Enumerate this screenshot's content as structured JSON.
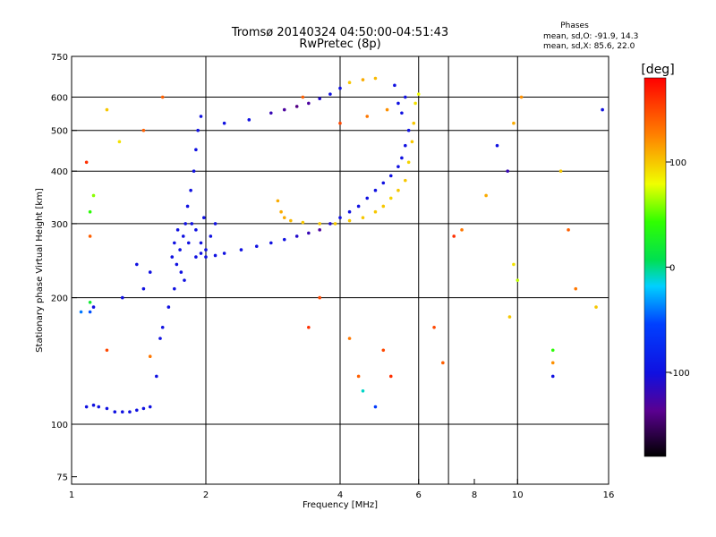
{
  "chart_data": {
    "type": "scatter",
    "title": "Tromsø 20140324 04:50:00-04:51:43",
    "subtitle": "RwPretec (8p)",
    "xlabel": "Frequency [MHz]",
    "ylabel": "Stationary phase Virtual Height [km]",
    "x_scale": "log",
    "y_scale": "log",
    "xlim": [
      1,
      16
    ],
    "ylim": [
      72,
      750
    ],
    "x_ticks": [
      1,
      2,
      4,
      6,
      8,
      10,
      16
    ],
    "x_tick_labels": [
      "1",
      "2",
      "4",
      "6",
      "8",
      "10",
      "16"
    ],
    "x_gridlines": [
      2,
      4,
      6,
      7,
      10
    ],
    "y_ticks": [
      75,
      100,
      200,
      300,
      400,
      500,
      600,
      750
    ],
    "y_tick_labels": [
      "75",
      "100",
      "200",
      "300",
      "400",
      "500",
      "600",
      "750"
    ],
    "y_gridlines": [
      100,
      200,
      300,
      400,
      500,
      600
    ],
    "legend": {
      "title": "Phases",
      "lines": [
        "mean, sd,O: -91.9, 14.3",
        "mean, sd,X:  85.6, 22.0"
      ]
    },
    "colorbar": {
      "label": "[deg]",
      "range": [
        -180,
        180
      ],
      "ticks": [
        -100,
        0,
        100
      ],
      "tick_labels": [
        "-100",
        "0",
        "100"
      ],
      "colormap": "rainbow"
    },
    "series": [
      {
        "points": [
          [
            1.08,
            110,
            -100
          ],
          [
            1.12,
            111,
            -100
          ],
          [
            1.15,
            110,
            -100
          ],
          [
            1.2,
            109,
            -100
          ],
          [
            1.25,
            107,
            -100
          ],
          [
            1.3,
            107,
            -100
          ],
          [
            1.35,
            107,
            -100
          ],
          [
            1.4,
            108,
            -100
          ],
          [
            1.45,
            109,
            -100
          ],
          [
            1.5,
            110,
            -100
          ],
          [
            1.55,
            130,
            -100
          ],
          [
            1.58,
            160,
            -100
          ],
          [
            1.6,
            170,
            -100
          ],
          [
            1.65,
            190,
            -100
          ],
          [
            1.7,
            210,
            -100
          ],
          [
            1.72,
            240,
            -100
          ],
          [
            1.75,
            260,
            -100
          ],
          [
            1.78,
            280,
            -100
          ],
          [
            1.8,
            300,
            -100
          ],
          [
            1.82,
            330,
            -100
          ],
          [
            1.85,
            360,
            -100
          ],
          [
            1.88,
            400,
            -100
          ],
          [
            1.9,
            450,
            -100
          ],
          [
            1.92,
            500,
            -100
          ],
          [
            1.95,
            540,
            -100
          ],
          [
            1.68,
            250,
            -100
          ],
          [
            1.7,
            270,
            -100
          ],
          [
            1.73,
            290,
            -100
          ],
          [
            1.76,
            230,
            -100
          ],
          [
            1.79,
            220,
            -100
          ],
          [
            1.83,
            270,
            -100
          ],
          [
            1.86,
            300,
            -100
          ],
          [
            1.9,
            290,
            -100
          ],
          [
            1.95,
            270,
            -100
          ],
          [
            2.0,
            260,
            -100
          ],
          [
            2.05,
            280,
            -100
          ],
          [
            2.1,
            300,
            -100
          ],
          [
            1.9,
            250,
            -100
          ],
          [
            1.95,
            255,
            -100
          ],
          [
            1.98,
            310,
            -100
          ],
          [
            2.0,
            250,
            -100
          ],
          [
            2.1,
            252,
            -100
          ],
          [
            2.2,
            255,
            -100
          ],
          [
            2.4,
            260,
            -100
          ],
          [
            2.6,
            265,
            -100
          ],
          [
            2.8,
            270,
            -100
          ],
          [
            3.0,
            275,
            -100
          ],
          [
            3.2,
            280,
            -110
          ],
          [
            3.4,
            285,
            -120
          ],
          [
            3.6,
            290,
            -130
          ],
          [
            3.8,
            300,
            -110
          ],
          [
            4.0,
            310,
            -100
          ],
          [
            4.2,
            320,
            -100
          ],
          [
            4.4,
            330,
            -100
          ],
          [
            4.6,
            345,
            -100
          ],
          [
            4.8,
            360,
            -100
          ],
          [
            5.0,
            375,
            -100
          ],
          [
            5.2,
            390,
            -100
          ],
          [
            5.4,
            410,
            -100
          ],
          [
            5.5,
            430,
            -100
          ],
          [
            5.6,
            460,
            -100
          ],
          [
            5.7,
            500,
            -100
          ],
          [
            2.2,
            520,
            -100
          ],
          [
            2.5,
            530,
            -100
          ],
          [
            2.8,
            550,
            -120
          ],
          [
            3.0,
            560,
            -130
          ],
          [
            3.2,
            570,
            -140
          ],
          [
            3.4,
            580,
            -130
          ],
          [
            3.6,
            595,
            -110
          ],
          [
            3.8,
            610,
            -100
          ],
          [
            4.0,
            630,
            -100
          ],
          [
            5.3,
            640,
            -100
          ],
          [
            5.4,
            580,
            -100
          ],
          [
            5.5,
            550,
            -100
          ],
          [
            1.5,
            230,
            -100
          ],
          [
            1.45,
            210,
            -100
          ],
          [
            1.4,
            240,
            -100
          ],
          [
            1.3,
            200,
            -100
          ],
          [
            1.12,
            190,
            -100
          ]
        ]
      },
      {
        "points": [
          [
            2.9,
            340,
            110
          ],
          [
            2.95,
            320,
            110
          ],
          [
            3.0,
            310,
            110
          ],
          [
            3.1,
            305,
            105
          ],
          [
            3.3,
            302,
            100
          ],
          [
            3.6,
            300,
            100
          ],
          [
            3.9,
            300,
            100
          ],
          [
            4.2,
            305,
            100
          ],
          [
            4.5,
            310,
            100
          ],
          [
            4.8,
            320,
            100
          ],
          [
            5.0,
            330,
            100
          ],
          [
            5.2,
            345,
            95
          ],
          [
            5.4,
            360,
            100
          ],
          [
            5.6,
            380,
            100
          ],
          [
            5.7,
            420,
            95
          ],
          [
            5.8,
            470,
            100
          ],
          [
            5.85,
            520,
            100
          ],
          [
            5.9,
            580,
            90
          ],
          [
            4.2,
            650,
            100
          ],
          [
            4.5,
            660,
            110
          ],
          [
            4.8,
            665,
            105
          ]
        ]
      },
      {
        "points": [
          [
            1.08,
            420,
            160
          ],
          [
            1.1,
            280,
            140
          ],
          [
            1.12,
            350,
            60
          ],
          [
            1.1,
            320,
            40
          ],
          [
            1.2,
            560,
            100
          ],
          [
            1.28,
            470,
            90
          ],
          [
            1.6,
            600,
            140
          ],
          [
            1.45,
            500,
            140
          ],
          [
            1.1,
            195,
            20
          ],
          [
            1.05,
            185,
            -40
          ],
          [
            1.1,
            185,
            -50
          ],
          [
            1.5,
            145,
            130
          ],
          [
            1.2,
            150,
            150
          ],
          [
            3.3,
            600,
            140
          ],
          [
            3.4,
            170,
            160
          ],
          [
            3.6,
            200,
            150
          ],
          [
            4.2,
            160,
            130
          ],
          [
            4.4,
            130,
            140
          ],
          [
            4.5,
            120,
            -10
          ],
          [
            4.8,
            110,
            -60
          ],
          [
            5.0,
            150,
            150
          ],
          [
            5.2,
            130,
            160
          ],
          [
            6.8,
            140,
            140
          ],
          [
            6.5,
            170,
            150
          ],
          [
            7.2,
            280,
            160
          ],
          [
            7.5,
            290,
            130
          ],
          [
            8.5,
            350,
            110
          ],
          [
            9.0,
            460,
            -100
          ],
          [
            9.5,
            400,
            -120
          ],
          [
            9.8,
            520,
            110
          ],
          [
            9.8,
            240,
            90
          ],
          [
            10.0,
            220,
            70
          ],
          [
            9.6,
            180,
            100
          ],
          [
            10.2,
            600,
            120
          ],
          [
            12.0,
            150,
            40
          ],
          [
            12.0,
            140,
            120
          ],
          [
            12.0,
            130,
            -100
          ],
          [
            12.5,
            400,
            100
          ],
          [
            13.0,
            290,
            140
          ],
          [
            13.5,
            210,
            130
          ],
          [
            15.0,
            190,
            100
          ],
          [
            15.5,
            560,
            -100
          ],
          [
            4.0,
            520,
            150
          ],
          [
            4.6,
            540,
            130
          ],
          [
            5.1,
            560,
            120
          ],
          [
            5.6,
            600,
            -100
          ],
          [
            6.0,
            610,
            80
          ]
        ]
      }
    ]
  }
}
